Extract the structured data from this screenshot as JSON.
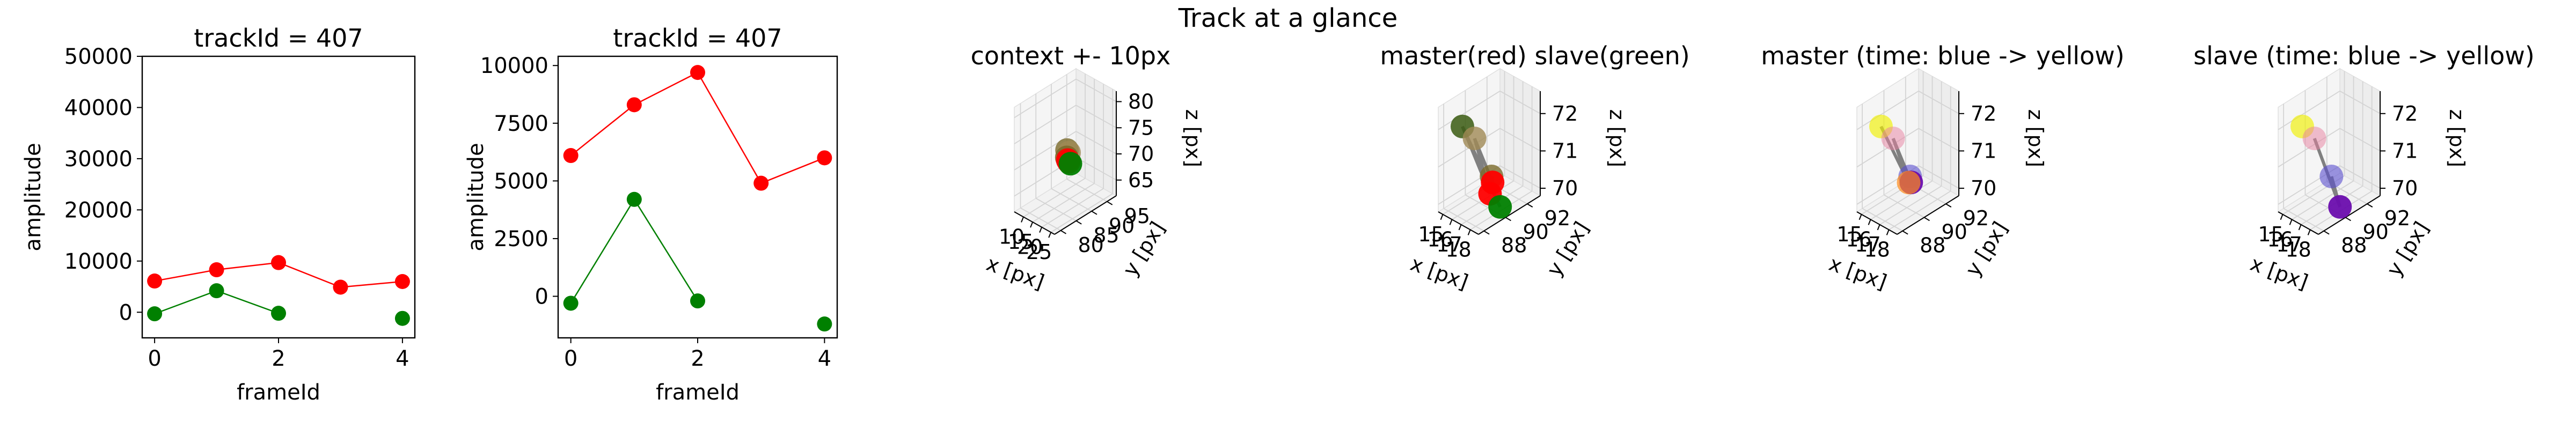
{
  "suptitle": "Track at a glance",
  "colors": {
    "master": "#ff0000",
    "slave": "#008000",
    "pane": "#f2f2f2",
    "grid": "#d4d4d4",
    "connector": "#808080"
  },
  "chart_data": [
    {
      "type": "line",
      "title": "trackId = 407",
      "xlabel": "frameId",
      "ylabel": "amplitude",
      "xlim": [
        -0.2,
        4.2
      ],
      "ylim": [
        -5000,
        50000
      ],
      "xticks": [
        "0",
        "2",
        "4"
      ],
      "yticks": [
        "0",
        "10000",
        "20000",
        "30000",
        "40000",
        "50000"
      ],
      "series": [
        {
          "color": "#ff0000",
          "x": [
            0,
            1,
            2,
            3,
            4
          ],
          "y": [
            6100,
            8300,
            9700,
            4900,
            6000
          ],
          "connected": [
            [
              0,
              1,
              2,
              3,
              4
            ]
          ]
        },
        {
          "color": "#008000",
          "x": [
            0,
            1,
            2,
            4
          ],
          "y": [
            -300,
            4200,
            -200,
            -1200
          ],
          "connected": [
            [
              0,
              1,
              2
            ]
          ]
        }
      ]
    },
    {
      "type": "line",
      "title": "trackId = 407",
      "xlabel": "frameId",
      "ylabel": "amplitude",
      "xlim": [
        -0.2,
        4.2
      ],
      "ylim": [
        -1800,
        10400
      ],
      "xticks": [
        "0",
        "2",
        "4"
      ],
      "yticks": [
        "0",
        "2500",
        "5000",
        "7500",
        "10000"
      ],
      "series": [
        {
          "color": "#ff0000",
          "x": [
            0,
            1,
            2,
            3,
            4
          ],
          "y": [
            6100,
            8300,
            9700,
            4900,
            6000
          ],
          "connected": [
            [
              0,
              1,
              2,
              3,
              4
            ]
          ]
        },
        {
          "color": "#008000",
          "x": [
            0,
            1,
            2,
            4
          ],
          "y": [
            -300,
            4200,
            -200,
            -1200
          ],
          "connected": [
            [
              0,
              1,
              2
            ]
          ]
        }
      ]
    },
    {
      "type": "scatter",
      "title": "context +- 10px",
      "xlabel": "x [px]",
      "ylabel": "y [px]",
      "zlabel": "z [px]",
      "xlim": [
        5,
        27
      ],
      "ylim": [
        78,
        98
      ],
      "zlim": [
        62,
        82
      ],
      "xticks": [
        "10",
        "15",
        "20",
        "25"
      ],
      "yticks": [
        "80",
        "85",
        "90",
        "95"
      ],
      "zticks": [
        "65",
        "70",
        "75",
        "80"
      ],
      "points": [
        {
          "x": 15.6,
          "y": 88.8,
          "z": 71.9,
          "color": "#7a6a2a",
          "alpha": 0.8
        },
        {
          "x": 17.4,
          "y": 88.4,
          "z": 71.9,
          "color": "#a08a55",
          "alpha": 0.8
        },
        {
          "x": 14.8,
          "y": 89.2,
          "z": 70.2,
          "color": "#7a6a2a",
          "alpha": 0.85
        },
        {
          "x": 16.3,
          "y": 88.6,
          "z": 70.2,
          "color": "#ff0000",
          "alpha": 0.9
        },
        {
          "x": 17.2,
          "y": 88.4,
          "z": 70.1,
          "color": "#ff0000",
          "alpha": 0.9
        },
        {
          "x": 18.3,
          "y": 88.3,
          "z": 70.0,
          "color": "#008000",
          "alpha": 0.95
        }
      ],
      "lines": []
    },
    {
      "type": "scatter",
      "title": "master(red) slave(green)",
      "xlabel": "x [px]",
      "ylabel": "y [px]",
      "zlabel": "z [px]",
      "xlim": [
        14.5,
        18.9
      ],
      "ylim": [
        87.5,
        93.2
      ],
      "zlim": [
        69.8,
        72.6
      ],
      "xticks": [
        "15",
        "16",
        "17",
        "18"
      ],
      "yticks": [
        "88",
        "90",
        "92"
      ],
      "zticks": [
        "70",
        "71",
        "72"
      ],
      "points": [
        {
          "x": 15.0,
          "y": 92.0,
          "z": 70.0,
          "color": "#7a6a2a",
          "alpha": 0.8
        },
        {
          "x": 16.3,
          "y": 91.0,
          "z": 70.2,
          "color": "#ff0000",
          "alpha": 0.95
        },
        {
          "x": 17.2,
          "y": 90.0,
          "z": 70.2,
          "color": "#ff0000",
          "alpha": 0.95
        },
        {
          "x": 18.3,
          "y": 90.0,
          "z": 70.0,
          "color": "#008000",
          "alpha": 0.95
        },
        {
          "x": 15.6,
          "y": 88.8,
          "z": 72.0,
          "color": "#3a5a10",
          "alpha": 0.85
        },
        {
          "x": 17.4,
          "y": 88.4,
          "z": 72.0,
          "color": "#a08a55",
          "alpha": 0.8
        }
      ],
      "lines": [
        [
          0,
          1
        ],
        [
          1,
          5
        ],
        [
          2,
          5
        ],
        [
          2,
          4
        ],
        [
          4,
          3
        ]
      ]
    },
    {
      "type": "scatter",
      "title": "master (time: blue -> yellow)",
      "xlabel": "x [px]",
      "ylabel": "y [px]",
      "zlabel": "z [px]",
      "xlim": [
        14.5,
        18.9
      ],
      "ylim": [
        87.5,
        93.2
      ],
      "zlim": [
        69.8,
        72.6
      ],
      "xticks": [
        "15",
        "16",
        "17",
        "18"
      ],
      "yticks": [
        "88",
        "90",
        "92"
      ],
      "zticks": [
        "70",
        "71",
        "72"
      ],
      "points": [
        {
          "x": 15.0,
          "y": 92.0,
          "z": 70.0,
          "color": "#5a4fcf",
          "alpha": 0.6
        },
        {
          "x": 16.3,
          "y": 91.0,
          "z": 70.2,
          "color": "#6a0dad",
          "alpha": 0.95
        },
        {
          "x": 17.2,
          "y": 90.0,
          "z": 70.5,
          "color": "#ff8c1a",
          "alpha": 0.7
        },
        {
          "x": 15.6,
          "y": 88.8,
          "z": 72.0,
          "color": "#f0f000",
          "alpha": 0.65
        },
        {
          "x": 17.4,
          "y": 88.4,
          "z": 72.0,
          "color": "#e77fa0",
          "alpha": 0.5
        }
      ],
      "lines": [
        [
          0,
          1
        ],
        [
          1,
          4
        ],
        [
          2,
          4
        ],
        [
          2,
          3
        ]
      ]
    },
    {
      "type": "scatter",
      "title": "slave (time: blue -> yellow)",
      "xlabel": "x [px]",
      "ylabel": "y [px]",
      "zlabel": "z [px]",
      "xlim": [
        14.5,
        18.9
      ],
      "ylim": [
        87.5,
        93.2
      ],
      "zlim": [
        69.8,
        72.6
      ],
      "xticks": [
        "15",
        "16",
        "17",
        "18"
      ],
      "yticks": [
        "88",
        "90",
        "92"
      ],
      "zticks": [
        "70",
        "71",
        "72"
      ],
      "points": [
        {
          "x": 15.0,
          "y": 92.0,
          "z": 70.0,
          "color": "#5a4fcf",
          "alpha": 0.6
        },
        {
          "x": 18.3,
          "y": 90.0,
          "z": 70.0,
          "color": "#6a0dad",
          "alpha": 0.95
        },
        {
          "x": 15.6,
          "y": 88.8,
          "z": 72.0,
          "color": "#f0f000",
          "alpha": 0.65
        },
        {
          "x": 17.4,
          "y": 88.4,
          "z": 72.0,
          "color": "#e77fa0",
          "alpha": 0.5
        }
      ],
      "lines": [
        [
          0,
          1
        ],
        [
          1,
          3
        ]
      ]
    }
  ]
}
